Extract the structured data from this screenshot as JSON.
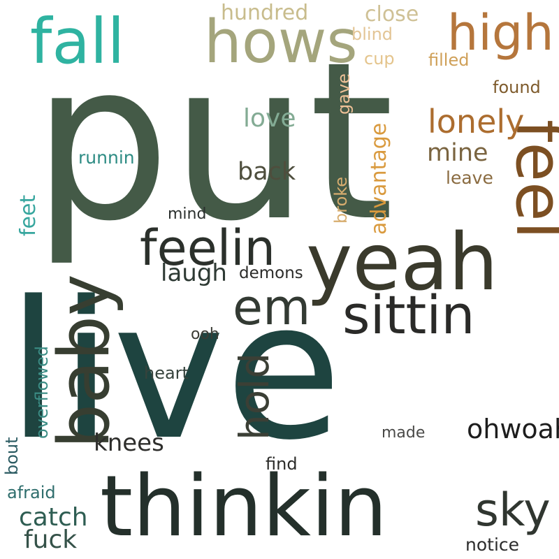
{
  "words": [
    {
      "text": "put",
      "color": "#445a47"
    },
    {
      "text": "live",
      "color": "#1e4440"
    },
    {
      "text": "thinkin",
      "color": "#24302b"
    },
    {
      "text": "baby",
      "color": "#373e31"
    },
    {
      "text": "yeah",
      "color": "#3a3a2c"
    },
    {
      "text": "feel",
      "color": "#7c4f22"
    },
    {
      "text": "fall",
      "color": "#2fb3a1"
    },
    {
      "text": "hows",
      "color": "#a4a57c"
    },
    {
      "text": "high",
      "color": "#b5763c"
    },
    {
      "text": "sittin",
      "color": "#2a2a28"
    },
    {
      "text": "feelin",
      "color": "#2b302b"
    },
    {
      "text": "em",
      "color": "#333a33"
    },
    {
      "text": "hold",
      "color": "#3b3f35"
    },
    {
      "text": "sky",
      "color": "#303630"
    },
    {
      "text": "lonely",
      "color": "#ac6d2f"
    },
    {
      "text": "ohwoah",
      "color": "#1d1d1d"
    },
    {
      "text": "catch",
      "color": "#2e5d52"
    },
    {
      "text": "fuck",
      "color": "#355249"
    },
    {
      "text": "knees",
      "color": "#2e2e2c"
    },
    {
      "text": "love",
      "color": "#83ab94"
    },
    {
      "text": "back",
      "color": "#4e4e3d"
    },
    {
      "text": "mine",
      "color": "#7a6440"
    },
    {
      "text": "laugh",
      "color": "#2e3a34"
    },
    {
      "text": "advantage",
      "color": "#d99a3e"
    },
    {
      "text": "hundred",
      "color": "#c8bc8c"
    },
    {
      "text": "close",
      "color": "#cfc196"
    },
    {
      "text": "blind",
      "color": "#e3c596"
    },
    {
      "text": "cup",
      "color": "#e4c48c"
    },
    {
      "text": "filled",
      "color": "#cfa058"
    },
    {
      "text": "found",
      "color": "#7e5b2c"
    },
    {
      "text": "gave",
      "color": "#edc096"
    },
    {
      "text": "leave",
      "color": "#8a6b40"
    },
    {
      "text": "broke",
      "color": "#d7ad6f"
    },
    {
      "text": "runnin",
      "color": "#2e8c84"
    },
    {
      "text": "feet",
      "color": "#37a69e"
    },
    {
      "text": "mind",
      "color": "#2b302e"
    },
    {
      "text": "demons",
      "color": "#2c2c2a"
    },
    {
      "text": "ooh",
      "color": "#3a3b34"
    },
    {
      "text": "heart",
      "color": "#36433c"
    },
    {
      "text": "overflowed",
      "color": "#3b8d85"
    },
    {
      "text": "made",
      "color": "#4a4a48"
    },
    {
      "text": "bout",
      "color": "#2b5b62"
    },
    {
      "text": "find",
      "color": "#2b2b29"
    },
    {
      "text": "afraid",
      "color": "#2e6d6c"
    },
    {
      "text": "notice",
      "color": "#2c2c2c"
    }
  ]
}
